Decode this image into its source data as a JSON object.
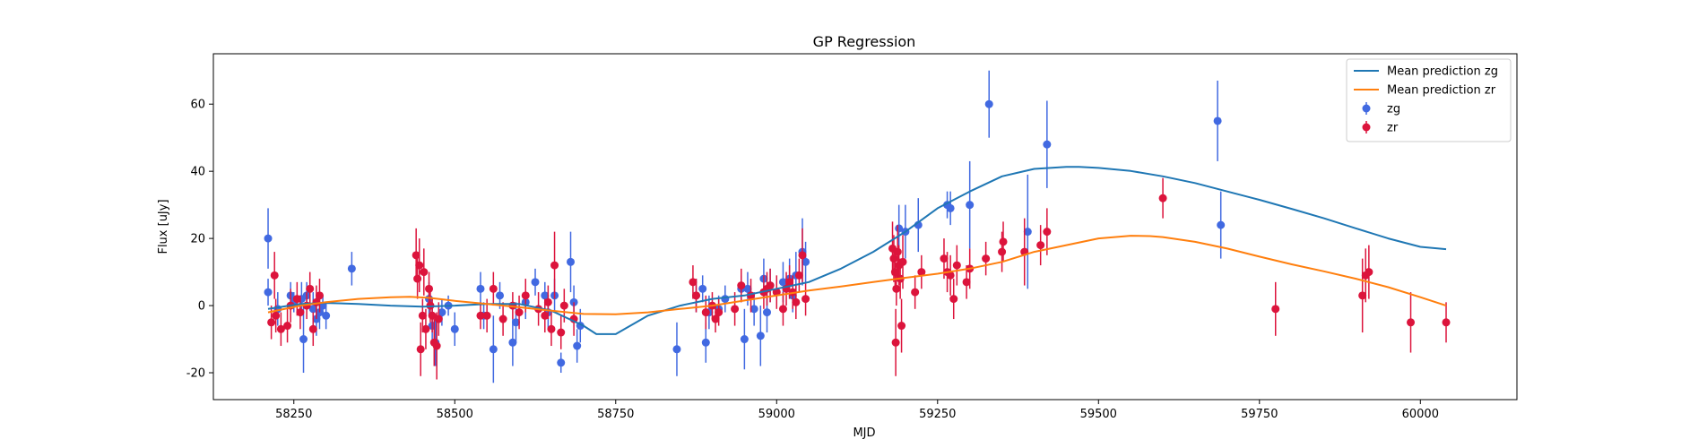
{
  "chart_data": {
    "type": "scatter",
    "title": "GP Regression",
    "xlabel": "MJD",
    "ylabel": "Flux [uJy]",
    "xlim": [
      58125,
      60150
    ],
    "ylim": [
      -28,
      75
    ],
    "xticks": [
      58250,
      58500,
      58750,
      59000,
      59250,
      59500,
      59750,
      60000
    ],
    "yticks": [
      -20,
      0,
      20,
      40,
      60
    ],
    "grid": false,
    "legend": "top-right",
    "series": [
      {
        "name": "Mean prediction zg",
        "kind": "line",
        "color": "#1f77b4",
        "x": [
          58210,
          58260,
          58300,
          58350,
          58400,
          58450,
          58500,
          58550,
          58600,
          58650,
          58700,
          58720,
          58750,
          58800,
          58850,
          58900,
          58950,
          59000,
          59050,
          59100,
          59150,
          59200,
          59250,
          59300,
          59350,
          59400,
          59450,
          59470,
          59500,
          59550,
          59600,
          59650,
          59700,
          59750,
          59800,
          59850,
          59900,
          59950,
          60000,
          60040
        ],
        "y": [
          -1,
          0.5,
          0.8,
          0.5,
          0,
          -0.3,
          0,
          0.5,
          0.5,
          -1.5,
          -6,
          -8.5,
          -8.5,
          -3,
          0,
          2,
          3,
          5,
          7,
          11,
          16,
          22,
          29,
          34,
          38.5,
          40.7,
          41.3,
          41.3,
          41,
          40.1,
          38.5,
          36.5,
          34,
          31.5,
          28.8,
          26,
          23,
          20,
          17.5,
          16.8
        ]
      },
      {
        "name": "Mean prediction zr",
        "kind": "line",
        "color": "#ff7f0e",
        "x": [
          58210,
          58260,
          58300,
          58350,
          58400,
          58430,
          58460,
          58500,
          58550,
          58600,
          58650,
          58700,
          58750,
          58800,
          58850,
          58900,
          58950,
          59000,
          59050,
          59100,
          59150,
          59200,
          59250,
          59300,
          59350,
          59400,
          59450,
          59500,
          59550,
          59580,
          59600,
          59650,
          59700,
          59750,
          59800,
          59850,
          59900,
          59950,
          60000,
          60040
        ],
        "y": [
          -2,
          0,
          1,
          2,
          2.5,
          2.6,
          2.3,
          1.4,
          0.5,
          -0.5,
          -1.5,
          -2.5,
          -2.6,
          -2,
          -1,
          0,
          1.5,
          3,
          4.5,
          5.7,
          7,
          8.3,
          9.5,
          11,
          13,
          16,
          18,
          20,
          20.8,
          20.7,
          20.4,
          19,
          17,
          14.6,
          12.3,
          10.2,
          8,
          5.5,
          2.5,
          0
        ]
      },
      {
        "name": "zg",
        "kind": "errorbar",
        "color": "#4169e1",
        "points": [
          [
            58210,
            4,
            4
          ],
          [
            58210,
            20,
            9
          ],
          [
            58225,
            -1,
            5
          ],
          [
            58245,
            3,
            4
          ],
          [
            58250,
            1,
            3
          ],
          [
            58262,
            2,
            5
          ],
          [
            58265,
            -10,
            10
          ],
          [
            58270,
            3,
            4
          ],
          [
            58280,
            -1,
            5
          ],
          [
            58285,
            -4,
            5
          ],
          [
            58290,
            -2,
            5
          ],
          [
            58295,
            0,
            3
          ],
          [
            58300,
            -3,
            4
          ],
          [
            58340,
            11,
            5
          ],
          [
            58460,
            2,
            5
          ],
          [
            58465,
            -6,
            6
          ],
          [
            58470,
            -11,
            7
          ],
          [
            58480,
            -2,
            4
          ],
          [
            58490,
            0,
            3
          ],
          [
            58500,
            -7,
            5
          ],
          [
            58540,
            5,
            5
          ],
          [
            58545,
            -3,
            4
          ],
          [
            58560,
            -13,
            10
          ],
          [
            58570,
            3,
            4
          ],
          [
            58590,
            -11,
            7
          ],
          [
            58595,
            -5,
            6
          ],
          [
            58610,
            1,
            5
          ],
          [
            58625,
            7,
            4
          ],
          [
            58640,
            3,
            4
          ],
          [
            58645,
            -2,
            5
          ],
          [
            58655,
            3,
            5
          ],
          [
            58665,
            -17,
            3
          ],
          [
            58680,
            13,
            9
          ],
          [
            58685,
            1,
            5
          ],
          [
            58690,
            -12,
            5
          ],
          [
            58695,
            -6,
            5
          ],
          [
            58845,
            -13,
            8
          ],
          [
            58875,
            3,
            5
          ],
          [
            58885,
            5,
            4
          ],
          [
            58890,
            -11,
            6
          ],
          [
            58895,
            -2,
            5
          ],
          [
            58910,
            -1,
            4
          ],
          [
            58920,
            2,
            4
          ],
          [
            58945,
            5,
            4
          ],
          [
            58950,
            -10,
            9
          ],
          [
            58955,
            5,
            5
          ],
          [
            58965,
            -1,
            5
          ],
          [
            58975,
            -9,
            9
          ],
          [
            58980,
            8,
            6
          ],
          [
            58985,
            -2,
            6
          ],
          [
            58990,
            6,
            5
          ],
          [
            59010,
            7,
            6
          ],
          [
            59020,
            8,
            6
          ],
          [
            59025,
            3,
            5
          ],
          [
            59030,
            9,
            7
          ],
          [
            59040,
            16,
            10
          ],
          [
            59045,
            13,
            6
          ],
          [
            59190,
            23,
            7
          ],
          [
            59200,
            22,
            8
          ],
          [
            59220,
            24,
            8
          ],
          [
            59265,
            30,
            4
          ],
          [
            59270,
            29,
            5
          ],
          [
            59300,
            30,
            13
          ],
          [
            59330,
            60,
            10
          ],
          [
            59390,
            22,
            17
          ],
          [
            59420,
            48,
            13
          ],
          [
            59685,
            55,
            12
          ],
          [
            59690,
            24,
            10
          ]
        ]
      },
      {
        "name": "zr",
        "kind": "errorbar",
        "color": "#dc143c",
        "points": [
          [
            58215,
            -5,
            5
          ],
          [
            58220,
            9,
            7
          ],
          [
            58222,
            -3,
            5
          ],
          [
            58230,
            -7,
            5
          ],
          [
            58240,
            -6,
            5
          ],
          [
            58245,
            0,
            5
          ],
          [
            58255,
            2,
            5
          ],
          [
            58260,
            -2,
            5
          ],
          [
            58270,
            0,
            4
          ],
          [
            58275,
            5,
            5
          ],
          [
            58280,
            -7,
            5
          ],
          [
            58285,
            1,
            5
          ],
          [
            58290,
            3,
            5
          ],
          [
            58440,
            15,
            8
          ],
          [
            58442,
            8,
            6
          ],
          [
            58445,
            12,
            8
          ],
          [
            58447,
            -13,
            8
          ],
          [
            58450,
            -3,
            5
          ],
          [
            58452,
            10,
            7
          ],
          [
            58455,
            -7,
            6
          ],
          [
            58460,
            5,
            5
          ],
          [
            58462,
            0,
            5
          ],
          [
            58465,
            -3,
            5
          ],
          [
            58468,
            -11,
            7
          ],
          [
            58472,
            -12,
            10
          ],
          [
            58475,
            -4,
            5
          ],
          [
            58540,
            -3,
            4
          ],
          [
            58550,
            -3,
            5
          ],
          [
            58560,
            5,
            5
          ],
          [
            58575,
            -4,
            5
          ],
          [
            58590,
            0,
            4
          ],
          [
            58600,
            -2,
            5
          ],
          [
            58610,
            3,
            5
          ],
          [
            58630,
            -1,
            5
          ],
          [
            58640,
            -3,
            5
          ],
          [
            58645,
            1,
            5
          ],
          [
            58650,
            -7,
            5
          ],
          [
            58655,
            12,
            10
          ],
          [
            58665,
            -8,
            5
          ],
          [
            58670,
            0,
            5
          ],
          [
            58685,
            -4,
            5
          ],
          [
            58870,
            7,
            5
          ],
          [
            58875,
            3,
            5
          ],
          [
            58890,
            -2,
            5
          ],
          [
            58900,
            0,
            4
          ],
          [
            58905,
            -4,
            4
          ],
          [
            58910,
            -2,
            4
          ],
          [
            58935,
            -1,
            5
          ],
          [
            58945,
            6,
            5
          ],
          [
            58960,
            3,
            5
          ],
          [
            58980,
            4,
            5
          ],
          [
            58985,
            5,
            5
          ],
          [
            58990,
            6,
            5
          ],
          [
            59000,
            4,
            5
          ],
          [
            59010,
            -1,
            5
          ],
          [
            59015,
            5,
            5
          ],
          [
            59020,
            7,
            5
          ],
          [
            59025,
            4,
            5
          ],
          [
            59030,
            1,
            5
          ],
          [
            59035,
            9,
            5
          ],
          [
            59040,
            15,
            8
          ],
          [
            59045,
            2,
            5
          ],
          [
            59180,
            17,
            8
          ],
          [
            59182,
            14,
            7
          ],
          [
            59184,
            10,
            6
          ],
          [
            59185,
            -11,
            10
          ],
          [
            59186,
            5,
            5
          ],
          [
            59188,
            16,
            8
          ],
          [
            59190,
            12,
            6
          ],
          [
            59192,
            8,
            6
          ],
          [
            59194,
            -6,
            8
          ],
          [
            59196,
            13,
            8
          ],
          [
            59215,
            4,
            5
          ],
          [
            59225,
            10,
            5
          ],
          [
            59260,
            14,
            6
          ],
          [
            59265,
            10,
            6
          ],
          [
            59270,
            9,
            6
          ],
          [
            59275,
            2,
            6
          ],
          [
            59280,
            12,
            6
          ],
          [
            59295,
            7,
            5
          ],
          [
            59300,
            11,
            6
          ],
          [
            59325,
            14,
            5
          ],
          [
            59350,
            16,
            6
          ],
          [
            59352,
            19,
            6
          ],
          [
            59385,
            16,
            10
          ],
          [
            59410,
            18,
            6
          ],
          [
            59420,
            22,
            7
          ],
          [
            59600,
            32,
            6
          ],
          [
            59775,
            -1,
            8
          ],
          [
            59910,
            3,
            11
          ],
          [
            59915,
            9,
            8
          ],
          [
            59920,
            10,
            8
          ],
          [
            59985,
            -5,
            9
          ],
          [
            60040,
            -5,
            6
          ]
        ]
      }
    ]
  }
}
